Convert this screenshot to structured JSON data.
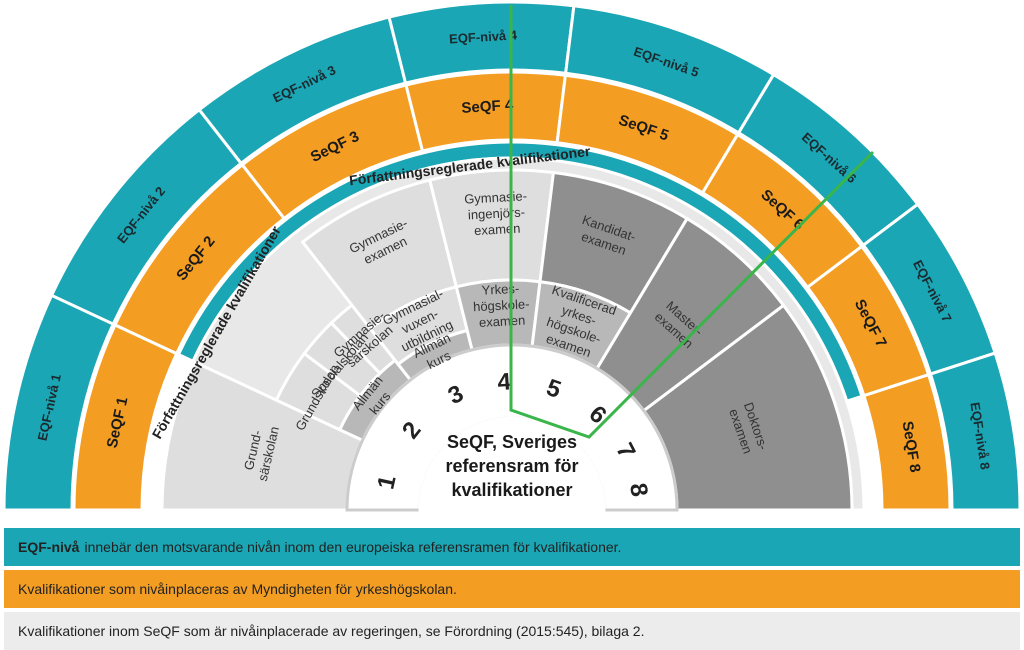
{
  "colors": {
    "teal": "#1aa6b4",
    "orange": "#f39d23",
    "grey_outer": "#bfbfbf",
    "grey_light": "#dedede",
    "grey_mid": "#b8b8b8",
    "grey_dark": "#8f8f8f",
    "green_line": "#3ab54a",
    "legend_grey": "#ececec"
  },
  "eqf_levels": [
    "EQF-nivå 1",
    "EQF-nivå 2",
    "EQF-nivå 3",
    "EQF-nivå 4",
    "EQF-nivå 5",
    "EQF-nivå 6",
    "EQF-nivå 7",
    "EQF-nivå 8"
  ],
  "seqf_levels": [
    "SeQF 1",
    "SeQF 2",
    "SeQF 3",
    "SeQF 4",
    "SeQF 5",
    "SeQF 6",
    "SeQF 7",
    "SeQF 8"
  ],
  "level_numbers": [
    "1",
    "2",
    "3",
    "4",
    "5",
    "6",
    "7",
    "8"
  ],
  "center_title": [
    "SeQF, Sveriges",
    "referensram för",
    "kvalifikationer"
  ],
  "band_labels": {
    "lower": "Författningsreglerade kvalifikationer",
    "upper": "Författningsreglerade kvalifikationer"
  },
  "qualifications": [
    {
      "lines": [
        "Grund-",
        "särskolan"
      ],
      "tone": "grey_light"
    },
    {
      "lines": [
        "Grundskolan"
      ],
      "tone": "grey_light"
    },
    {
      "lines": [
        "Specialskolan"
      ],
      "tone": "grey_light"
    },
    {
      "lines": [
        "Gymnasie-",
        "särskolan"
      ],
      "tone": "grey_light"
    },
    {
      "lines": [
        "Allmän",
        "kurs"
      ],
      "tone": "grey_mid"
    },
    {
      "lines": [
        "Gymnasie-",
        "examen"
      ],
      "tone": "grey_light"
    },
    {
      "lines": [
        "Gymnasial-",
        "vuxen-",
        "utbildning"
      ],
      "tone": "grey_light"
    },
    {
      "lines": [
        "Allmän",
        "kurs"
      ],
      "tone": "grey_mid"
    },
    {
      "lines": [
        "Gymnasie-",
        "ingenjörs-",
        "examen"
      ],
      "tone": "grey_light"
    },
    {
      "lines": [
        "Yrkes-",
        "högskole-",
        "examen"
      ],
      "tone": "grey_mid"
    },
    {
      "lines": [
        "Kandidat-",
        "examen"
      ],
      "tone": "grey_dark"
    },
    {
      "lines": [
        "Kvalificerad",
        "yrkes-",
        "högskole-",
        "examen"
      ],
      "tone": "grey_mid"
    },
    {
      "lines": [
        "Master-",
        "examen"
      ],
      "tone": "grey_dark"
    },
    {
      "lines": [
        "Doktors-",
        "examen"
      ],
      "tone": "grey_dark"
    }
  ],
  "legend": [
    {
      "bold": "EQF-nivå",
      "text": "innebär den motsvarande nivån inom den europeiska referensramen för kvalifikationer.",
      "color": "teal"
    },
    {
      "bold": "",
      "text": "Kvalifikationer som nivåinplaceras av Myndigheten för yrkeshögskolan.",
      "color": "orange"
    },
    {
      "bold": "",
      "text": "Kvalifikationer inom SeQF som är nivåinplacerade av regeringen, se Förordning (2015:545), bilaga 2.",
      "color": "legend_grey"
    }
  ]
}
